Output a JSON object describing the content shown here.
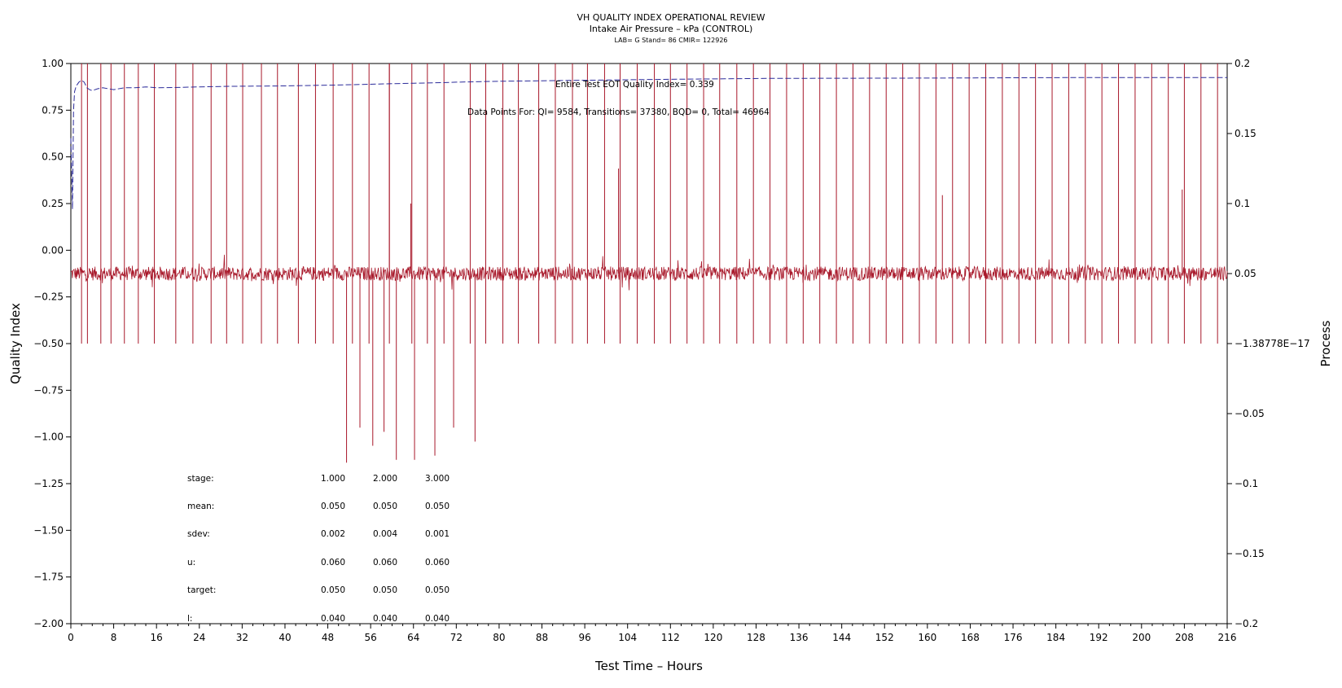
{
  "chart_data": {
    "type": "line",
    "title": "VH QUALITY INDEX OPERATIONAL REVIEW",
    "subtitle": "Intake Air Pressure – kPa (CONTROL)",
    "subsubtitle": "LAB= G Stand= 86 CMIR= 122926",
    "xlabel": "Test Time – Hours",
    "ylabel": "Quality Index",
    "y2label": "Process",
    "xlim": [
      0,
      216
    ],
    "ylim": [
      -2.0,
      1.0
    ],
    "y2lim": [
      -0.2,
      0.2
    ],
    "xticks": [
      0,
      8,
      16,
      24,
      32,
      40,
      48,
      56,
      64,
      72,
      80,
      88,
      96,
      104,
      112,
      120,
      128,
      136,
      144,
      152,
      160,
      168,
      176,
      184,
      192,
      200,
      208,
      216
    ],
    "yticks": [
      "1.00",
      "0.75",
      "0.50",
      "0.25",
      "0.00",
      "−0.25",
      "−0.50",
      "−0.75",
      "−1.00",
      "−1.25",
      "−1.50",
      "−1.75",
      "−2.00"
    ],
    "y2ticks": [
      "0.2",
      "0.15",
      "0.1",
      "0.05",
      "−1.38778E−17",
      "−0.05",
      "−0.1",
      "−0.15",
      "−0.2"
    ],
    "y2tick_values": [
      0.2,
      0.15,
      0.1,
      0.05,
      0.0,
      -0.05,
      -0.1,
      -0.15,
      -0.2
    ],
    "grid": false,
    "annotations": {
      "eot_qi": "Entire Test EOT Quality Index=   0.339",
      "data_points": "Data Points For: QI=  9584, Transitions= 37380, BQD=     0, Total= 46964"
    },
    "series": [
      {
        "axis": "left",
        "color": "#2b2b9a",
        "style": "dashed",
        "x": [
          0.0,
          0.3,
          0.5,
          0.7,
          1.0,
          1.5,
          2.0,
          2.5,
          3.0,
          3.5,
          4.0,
          5.0,
          6.0,
          7.0,
          8.0,
          10.0,
          12.0,
          14.0,
          16.0,
          20.0,
          24.0,
          30.0,
          40.0,
          50.0,
          60.0,
          70.0,
          72.0,
          80.0,
          96.0,
          110.0,
          130.0,
          160.0,
          190.0,
          216.0
        ],
        "y": [
          0.6,
          0.22,
          0.75,
          0.85,
          0.88,
          0.9,
          0.91,
          0.9,
          0.87,
          0.86,
          0.855,
          0.865,
          0.87,
          0.865,
          0.86,
          0.87,
          0.87,
          0.875,
          0.87,
          0.872,
          0.875,
          0.878,
          0.88,
          0.885,
          0.892,
          0.898,
          0.9,
          0.905,
          0.91,
          0.915,
          0.92,
          0.922,
          0.925,
          0.925
        ]
      },
      {
        "axis": "right",
        "color": "#a8182a",
        "style": "solid",
        "base": 0.05,
        "noise": 0.005,
        "spike_top": 0.2,
        "spike_bottom": 0.0,
        "spike_x": [
          2.0,
          3.1,
          5.6,
          7.5,
          10.0,
          12.6,
          15.6,
          19.6,
          22.8,
          26.2,
          29.1,
          32.1,
          35.6,
          38.6,
          42.5,
          45.7,
          49.0,
          52.6,
          55.7,
          59.5,
          63.7,
          66.6,
          69.7,
          74.6,
          77.5,
          80.7,
          83.6,
          87.4,
          90.5,
          93.7,
          96.5,
          99.7,
          102.6,
          105.8,
          109.0,
          112.0,
          115.1,
          118.2,
          121.2,
          124.4,
          127.5,
          130.6,
          133.7,
          136.8,
          139.9,
          143.0,
          146.1,
          149.2,
          152.3,
          155.4,
          158.5,
          161.6,
          164.7,
          167.8,
          170.9,
          174.0,
          177.1,
          180.2,
          183.3,
          186.4,
          189.5,
          192.6,
          195.7,
          198.8,
          201.9,
          205.0,
          208.0,
          211.1,
          214.2
        ],
        "dip_x": [
          51.5,
          54.0,
          56.4,
          58.5,
          60.8,
          64.2,
          68.0,
          71.5,
          75.5
        ],
        "dip_y": [
          -0.085,
          -0.06,
          -0.073,
          -0.063,
          -0.083,
          -0.083,
          -0.08,
          -0.06,
          -0.07
        ],
        "extra_x": [
          59.5,
          63.5,
          102.3,
          162.8,
          207.6
        ],
        "extra_y": [
          0.2,
          0.1,
          0.125,
          0.106,
          0.11
        ]
      }
    ],
    "stats_table": {
      "headers": [
        "stage:",
        "1.000",
        "2.000",
        "3.000"
      ],
      "rows": [
        [
          "mean:",
          "0.050",
          "0.050",
          "0.050"
        ],
        [
          "sdev:",
          "0.002",
          "0.004",
          "0.001"
        ],
        [
          "u:",
          "0.060",
          "0.060",
          "0.060"
        ],
        [
          "target:",
          "0.050",
          "0.050",
          "0.050"
        ],
        [
          "l:",
          "0.040",
          "0.040",
          "0.040"
        ]
      ]
    }
  }
}
